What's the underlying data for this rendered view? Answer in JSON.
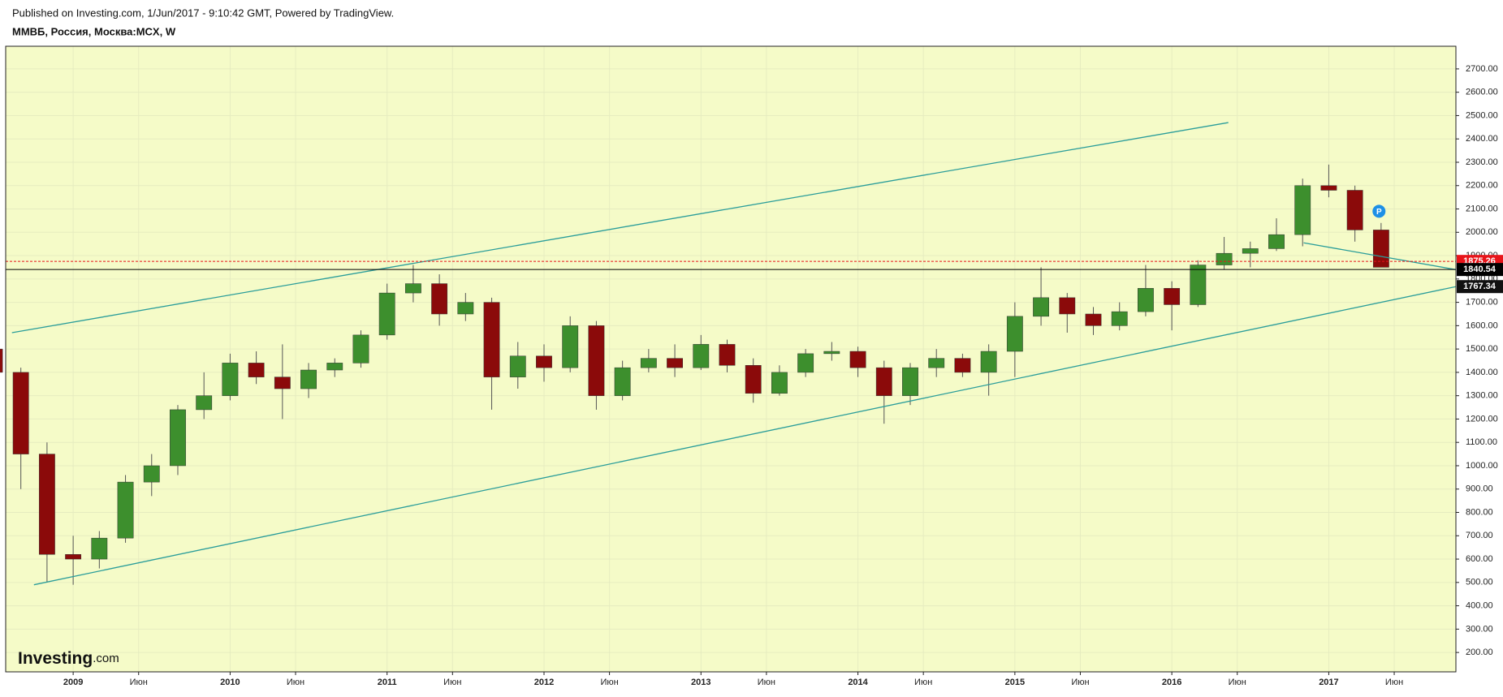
{
  "header": {
    "published": "Published on Investing.com, 1/Jun/2017 - 9:10:42 GMT, Powered by TradingView.",
    "symbol": "ММВБ, Россия, Москва:MCX, W"
  },
  "logo": {
    "name": "Investing",
    "suffix": ".com"
  },
  "marker": "P",
  "chart_data": {
    "type": "candlestick",
    "dates": [
      "2008-07",
      "2008-09",
      "2008-11",
      "2009-01",
      "2009-03",
      "2009-05",
      "2009-07",
      "2009-09",
      "2009-11",
      "2010-01",
      "2010-03",
      "2010-05",
      "2010-07",
      "2010-09",
      "2010-11",
      "2011-01",
      "2011-03",
      "2011-05",
      "2011-07",
      "2011-09",
      "2011-11",
      "2012-01",
      "2012-03",
      "2012-05",
      "2012-07",
      "2012-09",
      "2012-11",
      "2013-01",
      "2013-03",
      "2013-05",
      "2013-07",
      "2013-09",
      "2013-11",
      "2014-01",
      "2014-03",
      "2014-05",
      "2014-07",
      "2014-09",
      "2014-11",
      "2015-01",
      "2015-03",
      "2015-05",
      "2015-07",
      "2015-09",
      "2015-11",
      "2016-01",
      "2016-03",
      "2016-05",
      "2016-07",
      "2016-09",
      "2016-11",
      "2017-01",
      "2017-03",
      "2017-05"
    ],
    "open": [
      1500,
      1400,
      1050,
      620,
      600,
      690,
      930,
      1000,
      1240,
      1300,
      1440,
      1380,
      1330,
      1410,
      1440,
      1560,
      1740,
      1780,
      1650,
      1700,
      1380,
      1470,
      1420,
      1600,
      1300,
      1420,
      1460,
      1420,
      1520,
      1430,
      1310,
      1400,
      1480,
      1490,
      1420,
      1300,
      1420,
      1460,
      1400,
      1490,
      1640,
      1720,
      1650,
      1600,
      1660,
      1760,
      1690,
      1860,
      1910,
      1930,
      1990,
      2200,
      2180,
      2010
    ],
    "high": [
      1520,
      1420,
      1100,
      700,
      720,
      960,
      1050,
      1260,
      1400,
      1480,
      1490,
      1520,
      1440,
      1460,
      1580,
      1780,
      1860,
      1820,
      1740,
      1720,
      1530,
      1520,
      1640,
      1620,
      1450,
      1500,
      1520,
      1560,
      1540,
      1460,
      1430,
      1500,
      1530,
      1510,
      1450,
      1440,
      1500,
      1480,
      1520,
      1700,
      1850,
      1740,
      1680,
      1700,
      1860,
      1790,
      1880,
      1980,
      1960,
      2060,
      2230,
      2290,
      2200,
      2040
    ],
    "low": [
      1350,
      900,
      500,
      490,
      560,
      670,
      870,
      960,
      1200,
      1280,
      1350,
      1200,
      1290,
      1380,
      1420,
      1540,
      1700,
      1600,
      1620,
      1240,
      1330,
      1360,
      1400,
      1240,
      1280,
      1400,
      1380,
      1410,
      1400,
      1270,
      1300,
      1380,
      1450,
      1380,
      1180,
      1260,
      1380,
      1380,
      1300,
      1380,
      1600,
      1570,
      1560,
      1580,
      1640,
      1580,
      1680,
      1840,
      1850,
      1920,
      1940,
      2150,
      1960,
      1860
    ],
    "close": [
      1400,
      1050,
      620,
      600,
      690,
      930,
      1000,
      1240,
      1300,
      1440,
      1380,
      1330,
      1410,
      1440,
      1560,
      1740,
      1780,
      1650,
      1700,
      1380,
      1470,
      1420,
      1600,
      1300,
      1420,
      1460,
      1420,
      1520,
      1430,
      1310,
      1400,
      1480,
      1490,
      1420,
      1300,
      1420,
      1460,
      1400,
      1490,
      1640,
      1720,
      1650,
      1600,
      1660,
      1760,
      1690,
      1860,
      1910,
      1930,
      1990,
      2200,
      2180,
      2010,
      1850
    ],
    "up_color": "#3d8f2d",
    "down_color": "#8b0a0a",
    "ylim": [
      117,
      2797
    ],
    "yticks": [
      {
        "value": 200,
        "label": "200.00"
      },
      {
        "value": 300,
        "label": "300.00"
      },
      {
        "value": 400,
        "label": "400.00"
      },
      {
        "value": 500,
        "label": "500.00"
      },
      {
        "value": 600,
        "label": "600.00"
      },
      {
        "value": 700,
        "label": "700.00"
      },
      {
        "value": 800,
        "label": "800.00"
      },
      {
        "value": 900,
        "label": "900.00"
      },
      {
        "value": 1000,
        "label": "1000.00"
      },
      {
        "value": 1100,
        "label": "1100.00"
      },
      {
        "value": 1200,
        "label": "1200.00"
      },
      {
        "value": 1300,
        "label": "1300.00"
      },
      {
        "value": 1400,
        "label": "1400.00"
      },
      {
        "value": 1500,
        "label": "1500.00"
      },
      {
        "value": 1600,
        "label": "1600.00"
      },
      {
        "value": 1700,
        "label": "1700.00"
      },
      {
        "value": 1800,
        "label": "1800.00"
      },
      {
        "value": 1900,
        "label": "1900.00"
      },
      {
        "value": 2000,
        "label": "2000.00"
      },
      {
        "value": 2100,
        "label": "2100.00"
      },
      {
        "value": 2200,
        "label": "2200.00"
      },
      {
        "value": 2300,
        "label": "2300.00"
      },
      {
        "value": 2400,
        "label": "2400.00"
      },
      {
        "value": 2500,
        "label": "2500.00"
      },
      {
        "value": 2600,
        "label": "2600.00"
      },
      {
        "value": 2700,
        "label": "2700.00"
      }
    ],
    "xlim": [
      2008.57,
      2017.81
    ],
    "xticks": [
      2009,
      {
        "value": 2009.417,
        "label": "Июн"
      },
      2010,
      {
        "value": 2010.417,
        "label": "Июн"
      },
      2011,
      {
        "value": 2011.417,
        "label": "Июн"
      },
      2012,
      {
        "value": 2012.417,
        "label": "Июн"
      },
      2013,
      {
        "value": 2013.417,
        "label": "Июн"
      },
      2014,
      {
        "value": 2014.417,
        "label": "Июн"
      },
      2015,
      {
        "value": 2015.417,
        "label": "Июн"
      },
      2016,
      {
        "value": 2016.417,
        "label": "Июн"
      },
      2017,
      {
        "value": 2017.417,
        "label": "Июн"
      }
    ],
    "grid": true,
    "trendlines": [
      {
        "x": [
          2008.61,
          2016.36
        ],
        "y": [
          1570,
          2470
        ],
        "color": "#2a9d9a"
      },
      {
        "x": [
          2008.75,
          2017.81
        ],
        "y": [
          490,
          1767.34
        ],
        "color": "#2a9d9a"
      },
      {
        "x": [
          2016.84,
          2017.81
        ],
        "y": [
          1955,
          1840
        ],
        "color": "#2a9d9a"
      }
    ],
    "price_lines": [
      {
        "value": 1875.26,
        "color": "#e8141a",
        "dashed": true
      },
      {
        "value": 1840.54,
        "color": "#000000",
        "dashed": false
      }
    ]
  }
}
